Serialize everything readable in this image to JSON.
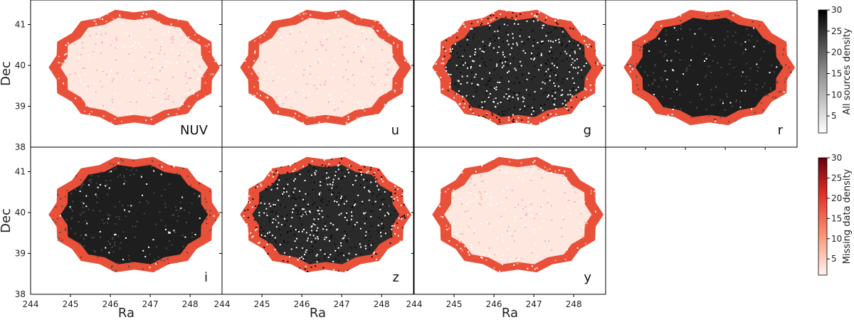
{
  "chart_data": {
    "type": "heatmap",
    "layout": "2x4 grid of sky density maps",
    "xlabel": "Ra",
    "ylabel": "Dec",
    "xlim": [
      244,
      248.8
    ],
    "ylim": [
      38,
      41.6
    ],
    "xticks": [
      244,
      245,
      246,
      247,
      248
    ],
    "yticks": [
      38,
      39,
      40,
      41
    ],
    "panels": [
      {
        "band": "NUV",
        "missing": "most",
        "footprint_size": 1.0
      },
      {
        "band": "u",
        "missing": "most",
        "footprint_size": 1.0
      },
      {
        "band": "g",
        "missing": "partial",
        "footprint_size": 1.0
      },
      {
        "band": "r",
        "missing": "edge",
        "footprint_size": 1.0
      },
      {
        "band": "i",
        "missing": "edge",
        "footprint_size": 1.0
      },
      {
        "band": "z",
        "missing": "partial",
        "footprint_size": 1.0
      },
      {
        "band": "y",
        "missing": "most",
        "footprint_size": 1.0
      }
    ],
    "colorbars": [
      {
        "label": "All sources density",
        "cmap": "Greys",
        "ticks": [
          5,
          10,
          15,
          20,
          25,
          30
        ],
        "range": [
          1,
          30
        ]
      },
      {
        "label": "Missing data density",
        "cmap": "Reds",
        "ticks": [
          5,
          10,
          15,
          20,
          25,
          30
        ],
        "range": [
          1,
          30
        ]
      }
    ],
    "colors": {
      "grey_high": "#111111",
      "red_high": "#7a0000",
      "red_low": "#fde7df",
      "red_edge": "#e8503a"
    }
  }
}
